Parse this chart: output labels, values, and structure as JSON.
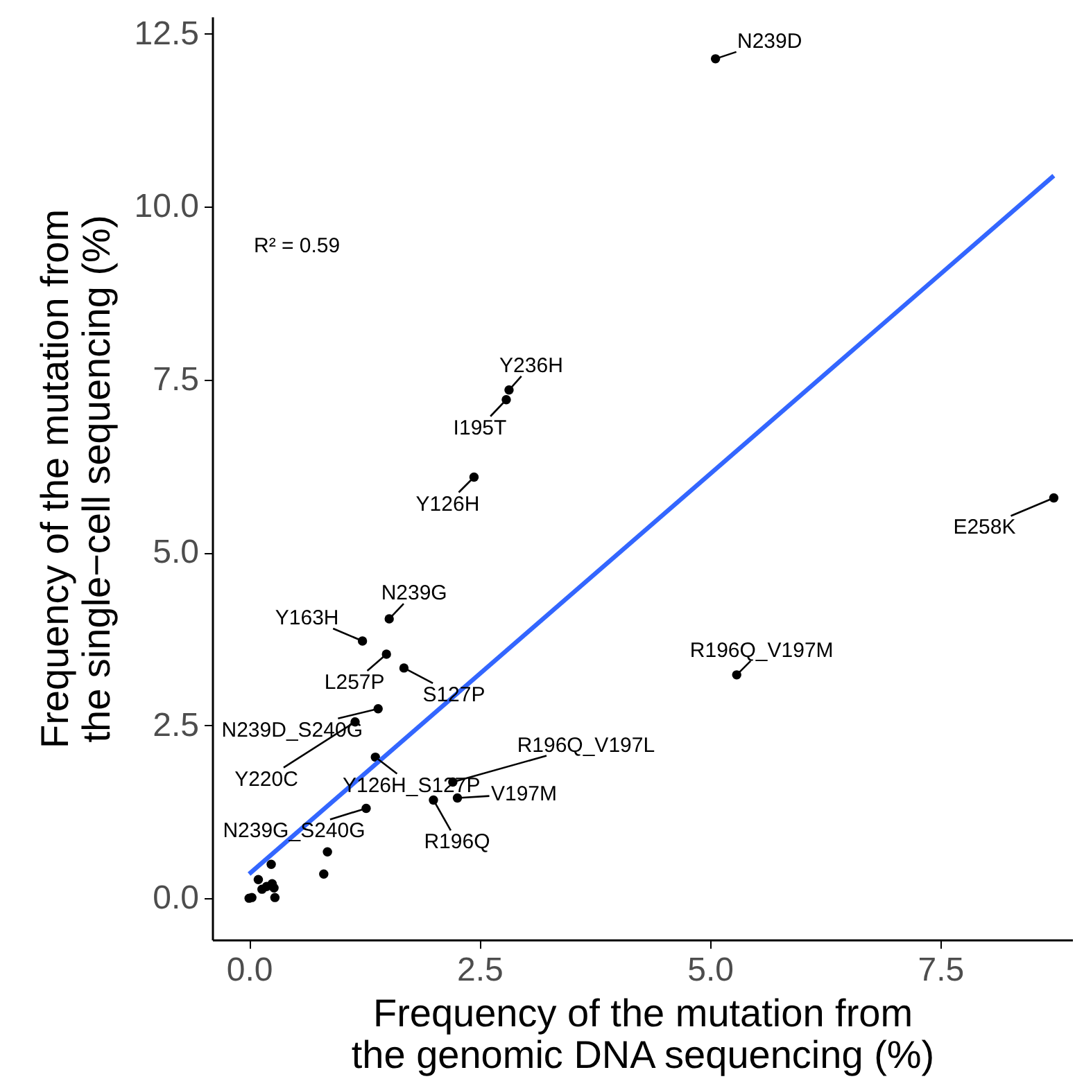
{
  "chart_data": {
    "type": "scatter",
    "xlabel": "Frequency of the mutation from\nthe genomic DNA sequencing (%)",
    "ylabel": "Frequency of the mutation from\nthe single−cell sequencing (%)",
    "xlim": [
      -0.4,
      8.93
    ],
    "ylim": [
      -0.6,
      12.75
    ],
    "xticks": [
      {
        "value": 0,
        "label": "0.0"
      },
      {
        "value": 2.5,
        "label": "2.5"
      },
      {
        "value": 5,
        "label": "5.0"
      },
      {
        "value": 7.5,
        "label": "7.5"
      }
    ],
    "yticks": [
      {
        "value": 0,
        "label": "0.0"
      },
      {
        "value": 2.5,
        "label": "2.5"
      },
      {
        "value": 5,
        "label": "5.0"
      },
      {
        "value": 7.5,
        "label": "7.5"
      },
      {
        "value": 10,
        "label": "10.0"
      },
      {
        "value": 12.5,
        "label": "12.5"
      }
    ],
    "grid": false,
    "series": [
      {
        "marker": "circle",
        "color": "#000000",
        "x": [
          5.06,
          2.82,
          2.79,
          2.44,
          8.73,
          5.29,
          1.52,
          1.23,
          1.49,
          1.68,
          1.4,
          1.15,
          1.37,
          1.27,
          2.21,
          2.26,
          2.0,
          0.85,
          0.81,
          0.24,
          0.1,
          0.14,
          0.19,
          0.25,
          0.27,
          0.28,
          0.0,
          0.03
        ],
        "values": [
          12.14,
          7.35,
          7.21,
          6.09,
          5.79,
          3.23,
          4.04,
          3.72,
          3.53,
          3.33,
          2.74,
          2.55,
          2.04,
          1.3,
          1.68,
          1.45,
          1.42,
          0.67,
          0.35,
          0.49,
          0.27,
          0.13,
          0.17,
          0.21,
          0.15,
          0.01,
          0.0,
          0.01
        ]
      },
      {
        "type": "line",
        "color": "#3366ff",
        "x": [
          0.0,
          8.73
        ],
        "values": [
          0.35,
          10.45
        ]
      }
    ],
    "annotations": [
      "R² = 0.59",
      {
        "text": "N239D",
        "x": 5.06,
        "y": 12.14
      },
      {
        "text": "Y236H",
        "x": 2.82,
        "y": 7.35
      },
      {
        "text": "I195T",
        "x": 2.79,
        "y": 7.21
      },
      {
        "text": "Y126H",
        "x": 2.44,
        "y": 6.09
      },
      {
        "text": "E258K",
        "x": 8.73,
        "y": 5.79
      },
      {
        "text": "R196Q_V197M",
        "x": 5.29,
        "y": 3.23
      },
      {
        "text": "N239G",
        "x": 1.52,
        "y": 4.04
      },
      {
        "text": "Y163H",
        "x": 1.23,
        "y": 3.72
      },
      {
        "text": "L257P",
        "x": 1.49,
        "y": 3.53
      },
      {
        "text": "S127P",
        "x": 1.68,
        "y": 3.33
      },
      {
        "text": "N239D_S240G",
        "x": 1.4,
        "y": 2.74
      },
      {
        "text": "Y220C",
        "x": 1.15,
        "y": 2.55
      },
      {
        "text": "Y126H_S127P",
        "x": 1.37,
        "y": 2.04
      },
      {
        "text": "N239G_S240G",
        "x": 1.27,
        "y": 1.3
      },
      {
        "text": "R196Q_V197L",
        "x": 2.21,
        "y": 1.68
      },
      {
        "text": "V197M",
        "x": 2.26,
        "y": 1.45
      },
      {
        "text": "R196Q",
        "x": 2.0,
        "y": 1.42
      }
    ]
  }
}
